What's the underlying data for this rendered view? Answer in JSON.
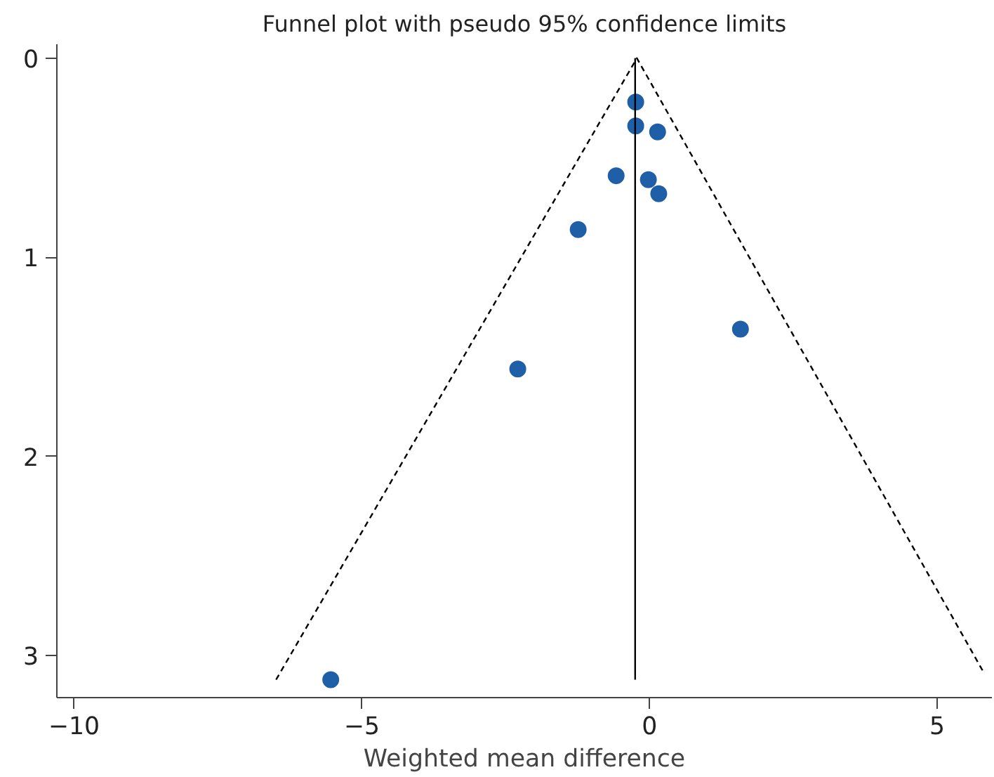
{
  "chart_data": {
    "type": "scatter",
    "title": "Funnel plot with pseudo 95% confidence limits",
    "xlabel": "Weighted mean difference",
    "xlim": [
      -10.3,
      5.95
    ],
    "ylim": [
      3.21,
      -0.07
    ],
    "xticks": [
      {
        "value": -10,
        "label": "−10"
      },
      {
        "value": -5,
        "label": "−5"
      },
      0,
      5
    ],
    "yticks": [
      0,
      1,
      2,
      3
    ],
    "grid": false,
    "series": [
      {
        "marker": "circle",
        "color": "#1f5fa8",
        "x": [
          -0.24,
          -0.24,
          0.14,
          -0.58,
          -0.02,
          0.16,
          -1.24,
          1.58,
          -2.29,
          -5.54
        ],
        "values": [
          0.22,
          0.34,
          0.37,
          0.59,
          0.61,
          0.68,
          0.86,
          1.36,
          1.56,
          3.12
        ]
      },
      {
        "type": "line",
        "color": "#000000",
        "line_style": "dashed",
        "x": [
          -6.49,
          -0.22,
          5.8
        ],
        "values": [
          3.12,
          0,
          3.08
        ]
      },
      {
        "type": "line",
        "color": "#000000",
        "line_style": "solid",
        "x": [
          -0.25,
          -0.25
        ],
        "values": [
          0,
          3.12
        ]
      }
    ]
  }
}
